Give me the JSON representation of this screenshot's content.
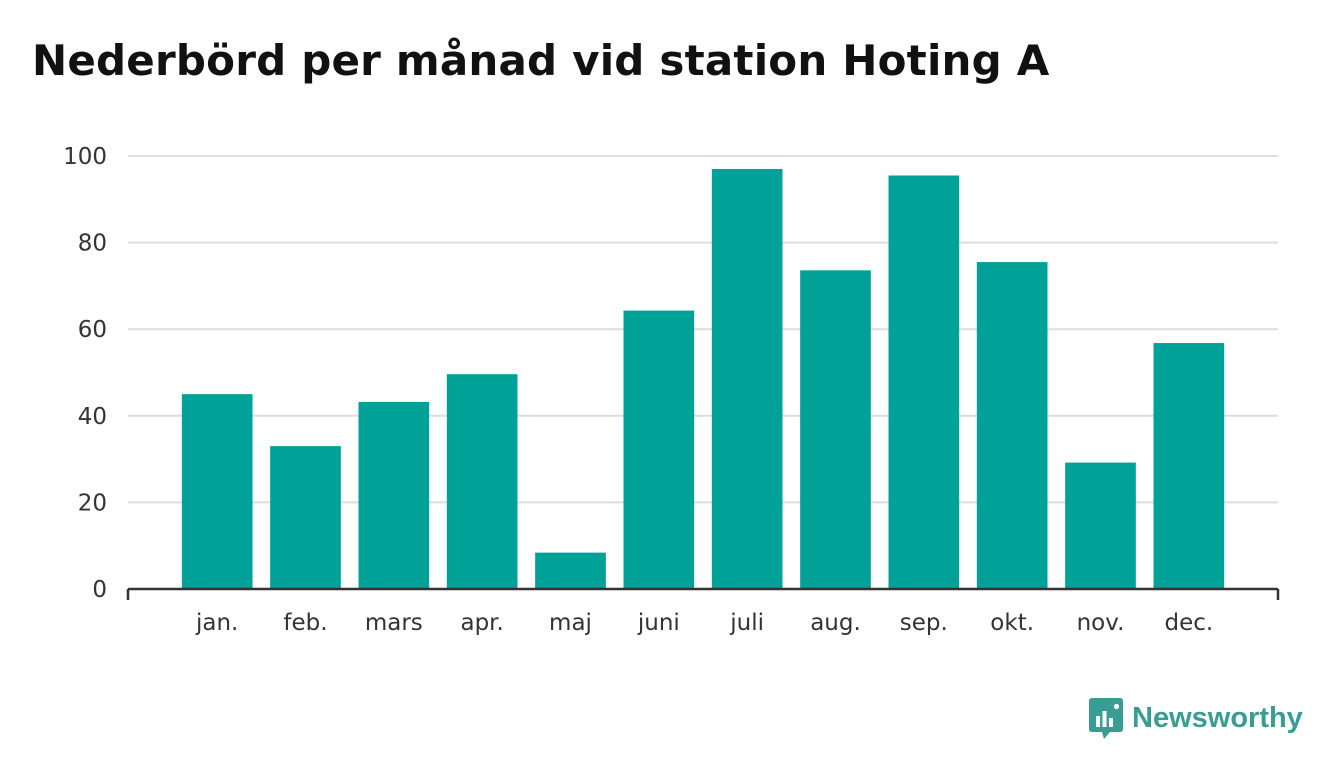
{
  "title": "Nederbörd per månad vid station Hoting A",
  "brand": {
    "name": "Newsworthy",
    "icon": "newsworthy-logo-icon",
    "color": "#3a9d94"
  },
  "colors": {
    "bar": "#00a197",
    "grid": "#dddddd",
    "axis": "#333333"
  },
  "chart_data": {
    "type": "bar",
    "categories": [
      "jan.",
      "feb.",
      "mars",
      "apr.",
      "maj",
      "juni",
      "juli",
      "aug.",
      "sep.",
      "okt.",
      "nov.",
      "dec."
    ],
    "values": [
      45,
      33,
      43.2,
      49.6,
      8.4,
      64.3,
      97,
      73.6,
      95.5,
      75.5,
      29.2,
      56.8
    ],
    "ylim": [
      0,
      100
    ],
    "yticks": [
      0,
      20,
      40,
      60,
      80,
      100
    ],
    "grid": true,
    "title": "Nederbörd per månad vid station Hoting A",
    "xlabel": "",
    "ylabel": ""
  }
}
